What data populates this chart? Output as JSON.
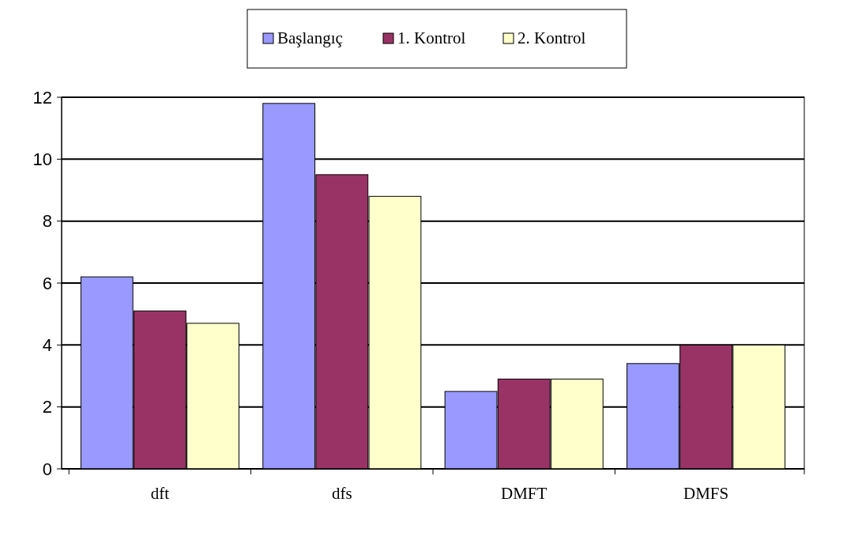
{
  "chart_data": {
    "type": "bar",
    "categories": [
      "dft",
      "dfs",
      "DMFT",
      "DMFS"
    ],
    "series": [
      {
        "name": "Başlangıç",
        "color": "#9999ff",
        "values": [
          6.2,
          11.8,
          2.5,
          3.4
        ]
      },
      {
        "name": "1. Kontrol",
        "color": "#993366",
        "values": [
          5.1,
          9.5,
          2.9,
          4.0
        ]
      },
      {
        "name": "2. Kontrol",
        "color": "#ffffcc",
        "values": [
          4.7,
          8.8,
          2.9,
          4.0
        ]
      }
    ],
    "ylim": [
      0,
      12
    ],
    "yticks": [
      0,
      2,
      4,
      6,
      8,
      10,
      12
    ],
    "grid": "y",
    "legend": "top"
  }
}
